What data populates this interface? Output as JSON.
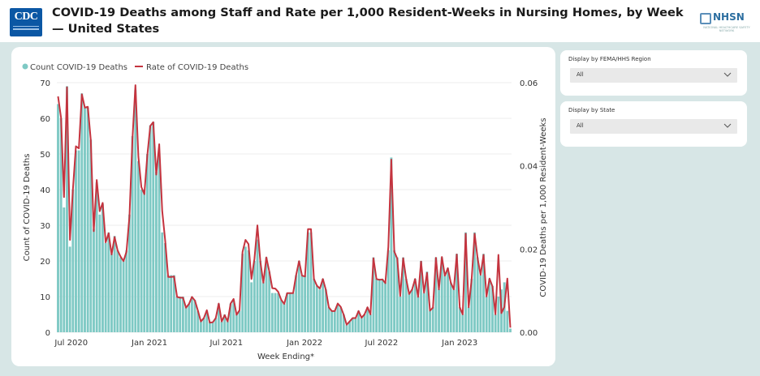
{
  "header": {
    "title": "COVID-19 Deaths among Staff and Rate per 1,000 Resident-Weeks in Nursing Homes, by Week — United States",
    "cdc_logo_text": "CDC",
    "nhsn_logo_text": "NHSN",
    "nhsn_tagline": "National Healthcare Safety Network"
  },
  "filters": {
    "region": {
      "label": "Display by FEMA/HHS Region",
      "value": "All"
    },
    "state": {
      "label": "Display by State",
      "value": "All"
    }
  },
  "colors": {
    "bar": "#7ec9c4",
    "line": "#c4343f",
    "panel_bg": "#d7e6e6",
    "cdc_blue": "#0b57a4"
  },
  "chart_data": {
    "type": "bar+line",
    "xlabel": "Week Ending*",
    "ylabel": "Count of COVID-19 Deaths",
    "y2label": "COVID-19 Deaths per 1,000 Resident-Weeks",
    "ylim": [
      0,
      70
    ],
    "y2lim": [
      0,
      0.06
    ],
    "yticks": [
      0,
      10,
      20,
      30,
      40,
      50,
      60,
      70
    ],
    "y2ticks": [
      "0.00",
      "0.02",
      "0.04",
      "0.06"
    ],
    "y2tick_values": [
      0,
      0.02,
      0.04,
      0.06
    ],
    "x_start": "2020-05-31",
    "x_step_days": 7,
    "xticks": [
      {
        "label": "Jul 2020",
        "date": "2020-07-01"
      },
      {
        "label": "Jan 2021",
        "date": "2021-01-01"
      },
      {
        "label": "Jul 2021",
        "date": "2021-07-01"
      },
      {
        "label": "Jan 2022",
        "date": "2022-01-01"
      },
      {
        "label": "Jul 2022",
        "date": "2022-07-01"
      },
      {
        "label": "Jan 2023",
        "date": "2023-01-01"
      }
    ],
    "grid": true,
    "legend_position": "top-left",
    "series": [
      {
        "name": "Count COVID-19 Deaths",
        "type": "bar",
        "values": [
          64,
          60,
          35,
          69,
          24,
          40,
          51,
          51,
          67,
          63,
          63,
          54,
          29,
          42,
          33,
          36,
          25,
          28,
          22,
          27,
          23,
          21,
          20,
          23,
          33,
          55,
          68,
          48,
          40,
          40,
          50,
          58,
          59,
          45,
          50,
          28,
          25,
          16,
          16,
          16,
          10,
          10,
          10,
          7,
          8,
          10,
          9,
          6,
          3,
          4,
          6,
          3,
          3,
          4,
          8,
          3,
          5,
          3,
          8,
          9,
          5,
          6,
          22,
          24,
          23,
          14,
          20,
          26,
          20,
          14,
          21,
          17,
          11,
          11,
          11,
          9,
          8,
          11,
          11,
          11,
          16,
          20,
          16,
          16,
          28,
          28,
          15,
          13,
          12,
          15,
          12,
          7,
          6,
          6,
          8,
          7,
          5,
          2,
          3,
          4,
          4,
          6,
          4,
          5,
          7,
          5,
          21,
          15,
          15,
          15,
          14,
          23,
          49,
          23,
          21,
          10,
          21,
          15,
          11,
          12,
          15,
          10,
          20,
          11,
          17,
          6,
          7,
          21,
          12,
          21,
          16,
          18,
          14,
          12,
          22,
          7,
          5,
          28,
          7,
          15,
          28,
          21,
          16,
          22,
          10,
          15,
          13,
          5,
          10,
          12,
          14,
          6,
          1
        ]
      },
      {
        "name": "Rate of COVID-19 Deaths",
        "type": "line",
        "axis": "y2",
        "values": [
          0.0567,
          0.0516,
          0.0325,
          0.0589,
          0.0222,
          0.0344,
          0.0447,
          0.0442,
          0.0572,
          0.054,
          0.0542,
          0.0462,
          0.0243,
          0.0366,
          0.0291,
          0.0311,
          0.0216,
          0.0238,
          0.0187,
          0.0229,
          0.0197,
          0.0182,
          0.0171,
          0.0194,
          0.0279,
          0.0464,
          0.0594,
          0.0422,
          0.0349,
          0.0332,
          0.0425,
          0.0496,
          0.0505,
          0.0379,
          0.0452,
          0.0292,
          0.0221,
          0.0133,
          0.0133,
          0.0134,
          0.0085,
          0.0083,
          0.0083,
          0.0059,
          0.0068,
          0.0085,
          0.0076,
          0.0052,
          0.0026,
          0.0034,
          0.0053,
          0.0023,
          0.0024,
          0.0034,
          0.0069,
          0.0026,
          0.0041,
          0.0026,
          0.0069,
          0.008,
          0.0042,
          0.0053,
          0.0193,
          0.0222,
          0.0212,
          0.0128,
          0.0176,
          0.0257,
          0.0169,
          0.0119,
          0.018,
          0.0146,
          0.0106,
          0.0105,
          0.0097,
          0.0078,
          0.0068,
          0.0094,
          0.0094,
          0.0094,
          0.0137,
          0.0171,
          0.0136,
          0.0134,
          0.0248,
          0.0248,
          0.0128,
          0.0112,
          0.0105,
          0.0128,
          0.0102,
          0.006,
          0.0051,
          0.0051,
          0.0069,
          0.0061,
          0.0042,
          0.0018,
          0.0026,
          0.0034,
          0.0034,
          0.0051,
          0.0035,
          0.0043,
          0.006,
          0.0043,
          0.0178,
          0.0128,
          0.0126,
          0.0127,
          0.0118,
          0.0205,
          0.0415,
          0.0194,
          0.0177,
          0.0087,
          0.0178,
          0.0128,
          0.0092,
          0.0103,
          0.0128,
          0.0085,
          0.017,
          0.0095,
          0.0143,
          0.0052,
          0.0059,
          0.0179,
          0.0103,
          0.0181,
          0.0136,
          0.0154,
          0.0119,
          0.0103,
          0.0187,
          0.006,
          0.0043,
          0.0237,
          0.006,
          0.0127,
          0.0237,
          0.0178,
          0.0138,
          0.0186,
          0.0086,
          0.0129,
          0.011,
          0.0043,
          0.0186,
          0.0046,
          0.0061,
          0.0129,
          0.0011
        ]
      }
    ]
  }
}
